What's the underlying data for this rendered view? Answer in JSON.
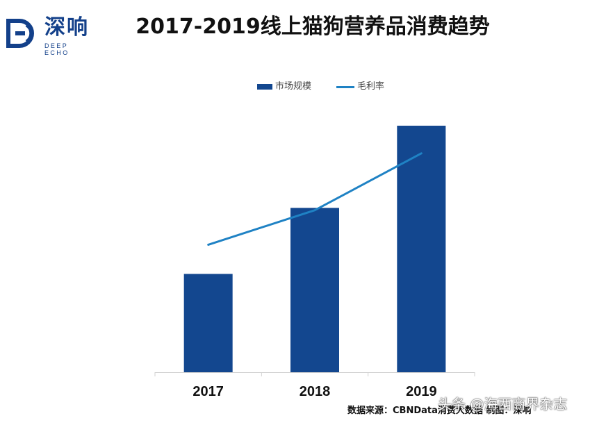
{
  "logo": {
    "cn": "深响",
    "en": "DEEP ECHO",
    "color": "#13408a"
  },
  "chart_data": {
    "type": "bar",
    "title": "2017-2019线上猫狗营养品消费趋势",
    "categories": [
      "2017",
      "2018",
      "2019"
    ],
    "series": [
      {
        "name": "市场规模",
        "type": "bar",
        "values": [
          128,
          214,
          321
        ],
        "color": "#13478f"
      },
      {
        "name": "毛利率",
        "type": "line",
        "values": [
          166,
          211,
          285
        ],
        "color": "#1f82c4"
      }
    ],
    "ylim": [
      0,
      340
    ],
    "grid": false,
    "legend_position": "top-center",
    "xlabel": "",
    "ylabel": ""
  },
  "footer": {
    "source": "数据来源：CBNData消费大数据 制图：深响",
    "watermark": "头条 @海西商界杂志"
  }
}
